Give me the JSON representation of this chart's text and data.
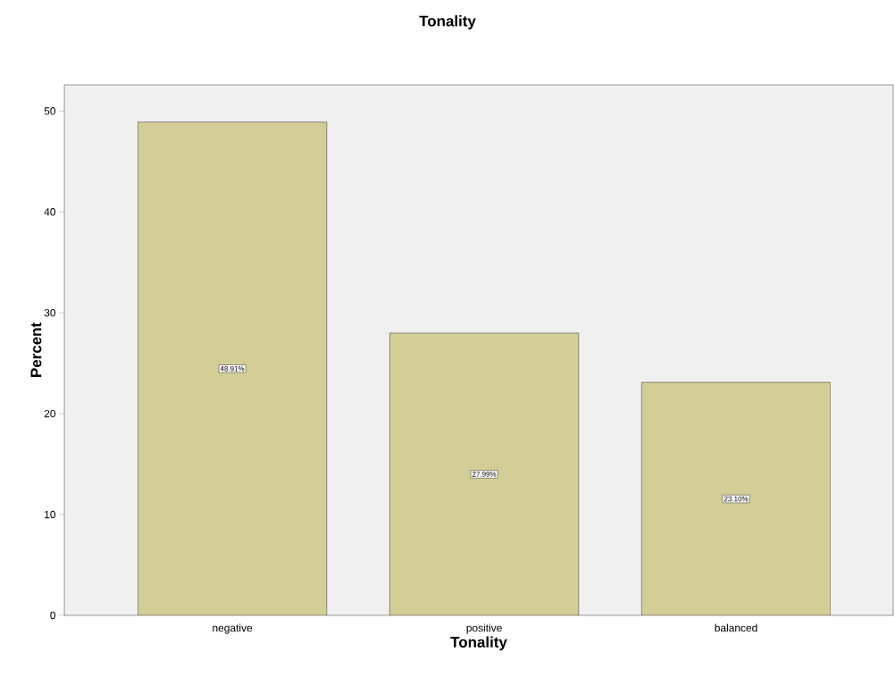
{
  "chart_data": {
    "type": "bar",
    "title": "Tonality",
    "xlabel": "Tonality",
    "ylabel": "Percent",
    "categories": [
      "negative",
      "positive",
      "balanced"
    ],
    "values": [
      48.91,
      27.99,
      23.1
    ],
    "value_labels": [
      "48.91%",
      "27.99%",
      "23.10%"
    ],
    "color": "#d3ce97",
    "ylim": [
      0,
      52.6
    ],
    "yticks": [
      0,
      10,
      20,
      30,
      40,
      50
    ]
  }
}
